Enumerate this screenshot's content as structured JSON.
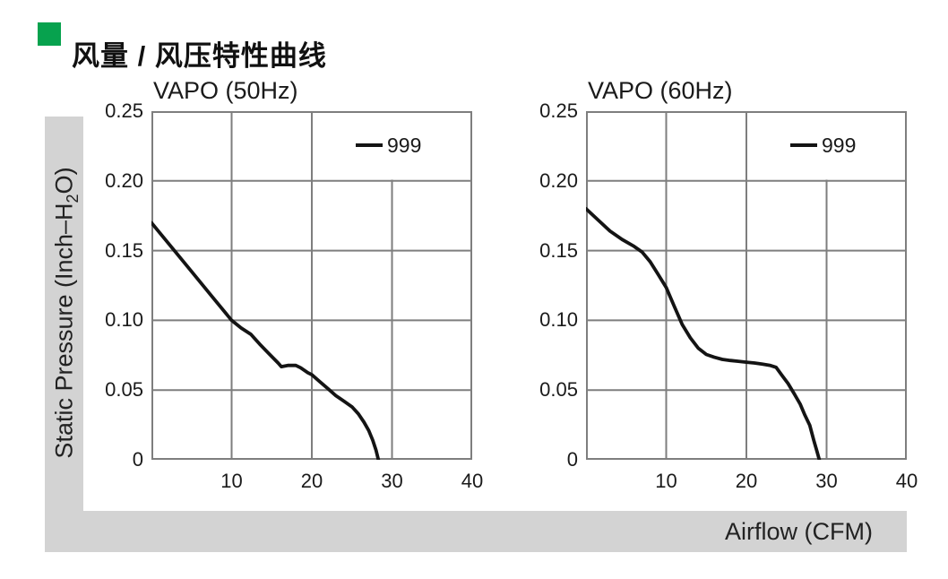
{
  "header": {
    "title": "风量 / 风压特性曲线",
    "accent_color": "#07a24e"
  },
  "axes_bands": {
    "y_label_prefix": "Static Pressure (Inch–H",
    "y_label_sub": "2",
    "y_label_suffix": "O)",
    "x_label": "Airflow (CFM)"
  },
  "style": {
    "grid_color": "#7e7e7e",
    "curve_color": "#141414",
    "band_color": "#d3d3d3",
    "text_color": "#1a1a1a"
  },
  "chart_data": [
    {
      "type": "line",
      "title": "VAPO (50Hz)",
      "xlabel": "Airflow (CFM)",
      "ylabel": "Static Pressure (Inch-H2O)",
      "xlim": [
        0,
        40
      ],
      "ylim": [
        0,
        0.25
      ],
      "grid": true,
      "legend": {
        "label": "999",
        "position": "top-right"
      },
      "xticks": [
        {
          "v": 10,
          "label": "10"
        },
        {
          "v": 20,
          "label": "20"
        },
        {
          "v": 30,
          "label": "30"
        },
        {
          "v": 40,
          "label": "40"
        }
      ],
      "yticks": [
        {
          "v": 0,
          "label": "0"
        },
        {
          "v": 0.05,
          "label": "0.05"
        },
        {
          "v": 0.1,
          "label": "0.10"
        },
        {
          "v": 0.15,
          "label": "0.15"
        },
        {
          "v": 0.2,
          "label": "0.20"
        },
        {
          "v": 0.25,
          "label": "0.25"
        }
      ],
      "series": [
        {
          "name": "999",
          "points": [
            [
              0,
              0.17
            ],
            [
              2.5,
              0.1525
            ],
            [
              5,
              0.135
            ],
            [
              7.5,
              0.1175
            ],
            [
              10,
              0.1
            ],
            [
              11.2,
              0.0945
            ],
            [
              12.4,
              0.09
            ],
            [
              13.5,
              0.083
            ],
            [
              14.7,
              0.0758
            ],
            [
              15.8,
              0.0694
            ],
            [
              16.2,
              0.0668
            ],
            [
              17,
              0.0677
            ],
            [
              18,
              0.0677
            ],
            [
              18.6,
              0.066
            ],
            [
              19.5,
              0.0625
            ],
            [
              20,
              0.061
            ],
            [
              21,
              0.056
            ],
            [
              22,
              0.051
            ],
            [
              23,
              0.046
            ],
            [
              24,
              0.042
            ],
            [
              25,
              0.038
            ],
            [
              25.8,
              0.033
            ],
            [
              26.5,
              0.027
            ],
            [
              27.1,
              0.021
            ],
            [
              27.6,
              0.014
            ],
            [
              28,
              0.007
            ],
            [
              28.3,
              0
            ]
          ]
        }
      ]
    },
    {
      "type": "line",
      "title": "VAPO (60Hz)",
      "xlabel": "Airflow (CFM)",
      "ylabel": "Static Pressure (Inch-H2O)",
      "xlim": [
        0,
        40
      ],
      "ylim": [
        0,
        0.25
      ],
      "grid": true,
      "legend": {
        "label": "999",
        "position": "top-right"
      },
      "xticks": [
        {
          "v": 10,
          "label": "10"
        },
        {
          "v": 20,
          "label": "20"
        },
        {
          "v": 30,
          "label": "30"
        },
        {
          "v": 40,
          "label": "40"
        }
      ],
      "yticks": [
        {
          "v": 0,
          "label": "0"
        },
        {
          "v": 0.05,
          "label": "0.05"
        },
        {
          "v": 0.1,
          "label": "0.10"
        },
        {
          "v": 0.15,
          "label": "0.15"
        },
        {
          "v": 0.2,
          "label": "0.20"
        },
        {
          "v": 0.25,
          "label": "0.25"
        }
      ],
      "series": [
        {
          "name": "999",
          "points": [
            [
              0,
              0.18
            ],
            [
              1.5,
              0.172
            ],
            [
              3,
              0.164
            ],
            [
              4.5,
              0.158
            ],
            [
              6,
              0.153
            ],
            [
              7,
              0.149
            ],
            [
              8,
              0.142
            ],
            [
              9,
              0.133
            ],
            [
              10,
              0.1235
            ],
            [
              11,
              0.11
            ],
            [
              12,
              0.097
            ],
            [
              13,
              0.0875
            ],
            [
              14,
              0.08
            ],
            [
              15,
              0.0755
            ],
            [
              16,
              0.0735
            ],
            [
              17,
              0.072
            ],
            [
              18,
              0.0712
            ],
            [
              19,
              0.0706
            ],
            [
              20,
              0.07
            ],
            [
              21,
              0.0694
            ],
            [
              22,
              0.0686
            ],
            [
              23,
              0.0676
            ],
            [
              23.7,
              0.0663
            ],
            [
              24.5,
              0.06
            ],
            [
              25.2,
              0.0547
            ],
            [
              26,
              0.047
            ],
            [
              26.7,
              0.04
            ],
            [
              27.3,
              0.032
            ],
            [
              27.9,
              0.0248
            ],
            [
              28.4,
              0.014
            ],
            [
              28.8,
              0.006
            ],
            [
              29.1,
              0
            ]
          ]
        }
      ]
    }
  ]
}
